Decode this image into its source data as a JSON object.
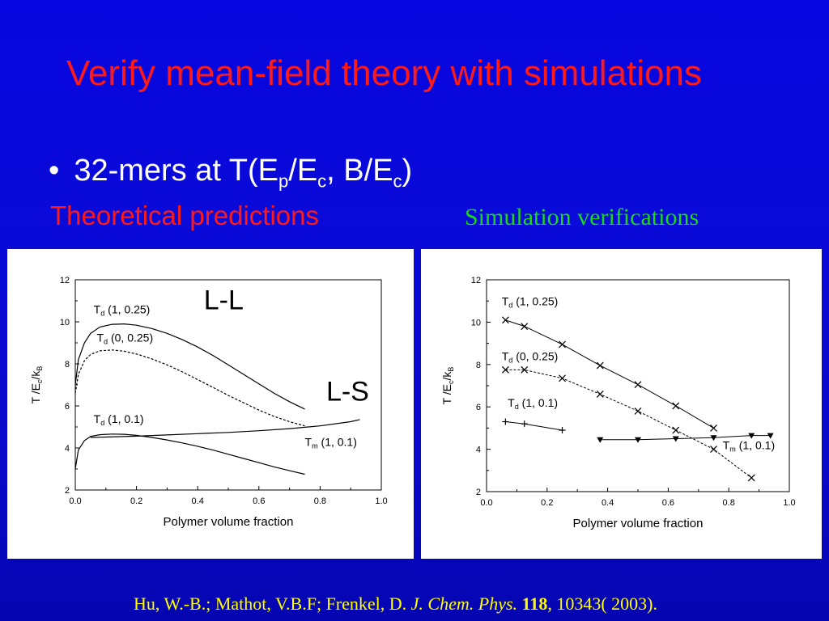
{
  "slide": {
    "title": "Verify mean-field theory with simulations",
    "bullet_symbol": "•",
    "bullet": {
      "t1": "32-mers at T(E",
      "sub1": "p",
      "t2": "/E",
      "sub2": "c",
      "t3": ", B/E",
      "sub3": "c",
      "t4": ")"
    },
    "left_caption": "Theoretical predictions",
    "right_caption": "Simulation verifications",
    "citation": {
      "authors": "Hu, W.-B.; Mathot, V.B.F; Frenkel, D.",
      "journal": "J. Chem. Phys.",
      "volume": "118",
      "pages": ", 10343( 2003)."
    },
    "colors": {
      "background": "#0808d0",
      "title": "#ff1a1a",
      "left_caption": "#ff1a1a",
      "right_caption": "#1ad81a",
      "citation": "#ffff00"
    }
  },
  "chart_data": [
    {
      "type": "line",
      "xlabel": "Polymer volume fraction",
      "ylabel": "T /E_c/k_B",
      "xlim": [
        0.0,
        1.0
      ],
      "ylim": [
        2,
        12
      ],
      "xticks": [
        "0.0",
        "0.2",
        "0.4",
        "0.6",
        "0.8",
        "1.0"
      ],
      "yticks": [
        "2",
        "4",
        "6",
        "8",
        "10",
        "12"
      ],
      "region_labels": [
        "L-L",
        "L-S"
      ],
      "series": [
        {
          "name": "T_d (1, 0.25)",
          "label_main": "T",
          "label_sub": "d",
          "label_rest": " (1, 0.25)",
          "style": "solid",
          "x": [
            0.0,
            0.01,
            0.03,
            0.05,
            0.08,
            0.12,
            0.16,
            0.2,
            0.25,
            0.3,
            0.35,
            0.4,
            0.45,
            0.5,
            0.55,
            0.6,
            0.65,
            0.7,
            0.75
          ],
          "y": [
            7.0,
            8.2,
            9.0,
            9.45,
            9.75,
            9.88,
            9.9,
            9.84,
            9.68,
            9.45,
            9.15,
            8.8,
            8.4,
            7.95,
            7.5,
            7.05,
            6.6,
            6.2,
            5.85
          ]
        },
        {
          "name": "T_d (0, 0.25)",
          "label_main": "T",
          "label_sub": "d",
          "label_rest": " (0, 0.25)",
          "style": "dashed",
          "x": [
            0.0,
            0.01,
            0.03,
            0.05,
            0.08,
            0.12,
            0.16,
            0.2,
            0.25,
            0.3,
            0.35,
            0.4,
            0.45,
            0.5,
            0.55,
            0.6,
            0.65,
            0.7,
            0.75
          ],
          "y": [
            6.6,
            7.5,
            8.15,
            8.45,
            8.62,
            8.66,
            8.6,
            8.47,
            8.24,
            7.95,
            7.62,
            7.25,
            6.88,
            6.5,
            6.15,
            5.8,
            5.5,
            5.25,
            5.05
          ]
        },
        {
          "name": "T_d (1, 0.1)",
          "label_main": "T",
          "label_sub": "d",
          "label_rest": " (1, 0.1)",
          "style": "solid",
          "x": [
            0.0,
            0.01,
            0.03,
            0.05,
            0.08,
            0.12,
            0.16,
            0.2,
            0.25,
            0.3,
            0.35,
            0.4,
            0.45,
            0.5,
            0.55,
            0.6,
            0.65,
            0.7,
            0.75
          ],
          "y": [
            3.0,
            3.9,
            4.35,
            4.55,
            4.63,
            4.66,
            4.65,
            4.6,
            4.5,
            4.38,
            4.24,
            4.08,
            3.9,
            3.7,
            3.5,
            3.3,
            3.1,
            2.92,
            2.75
          ]
        },
        {
          "name": "T_m (1, 0.1)",
          "label_main": "T",
          "label_sub": "m",
          "label_rest": " (1, 0.1)",
          "style": "solid",
          "x": [
            0.05,
            0.1,
            0.2,
            0.3,
            0.4,
            0.5,
            0.6,
            0.7,
            0.8,
            0.9,
            0.93
          ],
          "y": [
            4.5,
            4.52,
            4.56,
            4.62,
            4.68,
            4.74,
            4.82,
            4.92,
            5.05,
            5.25,
            5.35
          ]
        }
      ]
    },
    {
      "type": "scatter",
      "xlabel": "Polymer volume fraction",
      "ylabel": "T /E_c/k_B",
      "xlim": [
        0.0,
        1.0
      ],
      "ylim": [
        2,
        12
      ],
      "xticks": [
        "0.0",
        "0.2",
        "0.4",
        "0.6",
        "0.8",
        "1.0"
      ],
      "yticks": [
        "2",
        "4",
        "6",
        "8",
        "10",
        "12"
      ],
      "series": [
        {
          "name": "T_d (1, 0.25)",
          "label_main": "T",
          "label_sub": "d",
          "label_rest": " (1, 0.25)",
          "marker": "x",
          "line": "solid",
          "x": [
            0.0625,
            0.125,
            0.25,
            0.375,
            0.5,
            0.625,
            0.75
          ],
          "y": [
            10.1,
            9.8,
            8.95,
            7.95,
            7.05,
            6.05,
            5.0
          ]
        },
        {
          "name": "T_d (0, 0.25)",
          "label_main": "T",
          "label_sub": "d",
          "label_rest": " (0, 0.25)",
          "marker": "x",
          "line": "dashed",
          "x": [
            0.0625,
            0.125,
            0.25,
            0.375,
            0.5,
            0.625,
            0.75,
            0.875
          ],
          "y": [
            7.75,
            7.75,
            7.35,
            6.6,
            5.8,
            4.9,
            4.0,
            2.65
          ]
        },
        {
          "name": "T_d (1, 0.1)",
          "label_main": "T",
          "label_sub": "d",
          "label_rest": " (1, 0.1)",
          "marker": "+",
          "line": "solid",
          "x": [
            0.0625,
            0.125,
            0.25
          ],
          "y": [
            5.3,
            5.2,
            4.9
          ]
        },
        {
          "name": "T_m (1, 0.1)",
          "label_main": "T",
          "label_sub": "m",
          "label_rest": " (1, 0.1)",
          "marker": "triangle-down",
          "line": "solid",
          "x": [
            0.375,
            0.5,
            0.625,
            0.75,
            0.875,
            0.9375
          ],
          "y": [
            4.45,
            4.45,
            4.5,
            4.55,
            4.65,
            4.65
          ]
        }
      ]
    }
  ]
}
